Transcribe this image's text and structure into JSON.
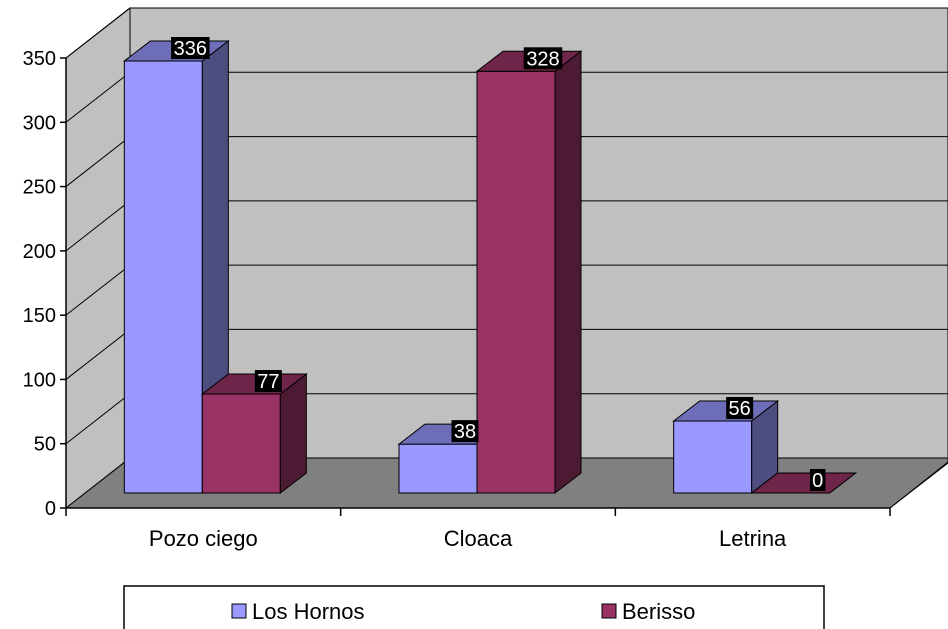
{
  "chart_data": {
    "type": "bar",
    "three_d": true,
    "categories": [
      "Pozo ciego",
      "Cloaca",
      "Letrina"
    ],
    "series": [
      {
        "name": "Los Hornos",
        "values": [
          336,
          38,
          56
        ],
        "color": "#9999ff"
      },
      {
        "name": "Berisso",
        "values": [
          77,
          328,
          0
        ],
        "color": "#993366"
      }
    ],
    "ylim": [
      0,
      350
    ],
    "yticks": [
      0,
      50,
      100,
      150,
      200,
      250,
      300,
      350
    ],
    "grid": true,
    "wall_color": "#c0c0c0",
    "floor_color": "#808080",
    "data_label_bg": "#000000",
    "legend_position": "bottom"
  }
}
